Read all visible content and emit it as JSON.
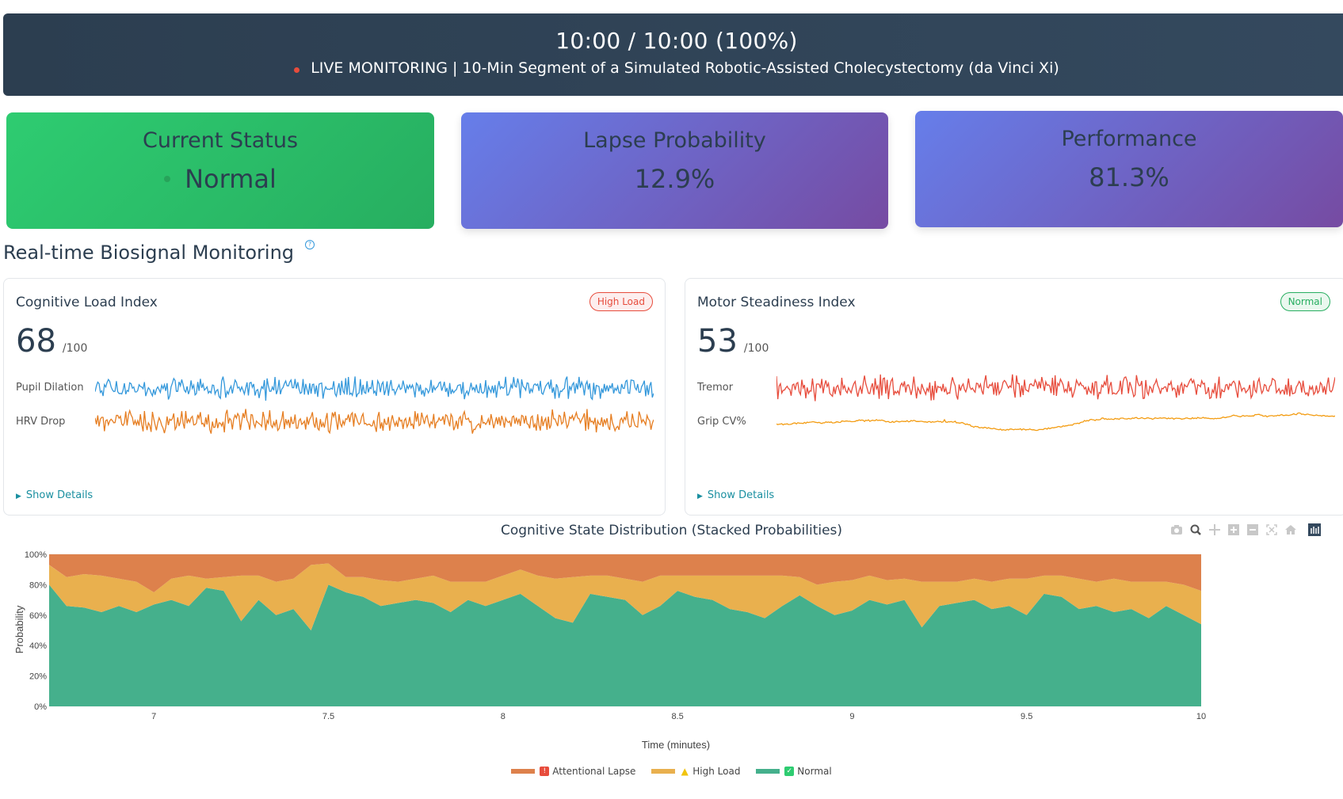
{
  "header": {
    "time": "10:00 / 10:00 (100%)",
    "subtitle": "LIVE MONITORING | 10-Min Segment of a Simulated Robotic-Assisted Cholecystectomy (da Vinci Xi)",
    "live_color": "#e74c3c"
  },
  "cards": {
    "status": {
      "title": "Current Status",
      "value": "Normal"
    },
    "lapse": {
      "title": "Lapse Probability",
      "value": "12.9%"
    },
    "performance": {
      "title": "Performance",
      "value": "81.3%"
    }
  },
  "section": {
    "title": "Real-time Biosignal Monitoring",
    "help_icon": "?"
  },
  "panels": {
    "cognitive": {
      "title": "Cognitive Load Index",
      "badge": "High Load",
      "value": "68",
      "max": "/100",
      "signals": [
        {
          "label": "Pupil Dilation",
          "color": "#3498db"
        },
        {
          "label": "HRV Drop",
          "color": "#e67e22"
        }
      ],
      "details": "Show Details"
    },
    "motor": {
      "title": "Motor Steadiness Index",
      "badge": "Normal",
      "value": "53",
      "max": "/100",
      "signals": [
        {
          "label": "Tremor",
          "color": "#e74c3c"
        },
        {
          "label": "Grip CV%",
          "color": "#f39c12"
        }
      ],
      "details": "Show Details"
    }
  },
  "modebar": {
    "icons": [
      "camera-icon",
      "zoom-icon",
      "pan-icon",
      "zoom-in-icon",
      "zoom-out-icon",
      "autoscale-icon",
      "reset-axes-icon",
      "plotly-logo-icon"
    ]
  },
  "chart_data": {
    "type": "area",
    "stacked": true,
    "title": "Cognitive State Distribution (Stacked Probabilities)",
    "xlabel": "Time (minutes)",
    "ylabel": "Probability",
    "xlim": [
      6.7,
      10
    ],
    "ylim": [
      0,
      1
    ],
    "xticks": [
      7,
      7.5,
      8,
      8.5,
      9,
      9.5,
      10
    ],
    "xtick_labels": [
      "7",
      "7.5",
      "8",
      "8.5",
      "9",
      "9.5",
      "10"
    ],
    "yticks": [
      0,
      0.2,
      0.4,
      0.6,
      0.8,
      1.0
    ],
    "ytick_labels": [
      "0%",
      "20%",
      "40%",
      "60%",
      "80%",
      "100%"
    ],
    "legend_position": "bottom",
    "x": [
      6.7,
      6.75,
      6.8,
      6.85,
      6.9,
      6.95,
      7.0,
      7.05,
      7.1,
      7.15,
      7.2,
      7.25,
      7.3,
      7.35,
      7.4,
      7.45,
      7.5,
      7.55,
      7.6,
      7.65,
      7.7,
      7.75,
      7.8,
      7.85,
      7.9,
      7.95,
      8.0,
      8.05,
      8.1,
      8.15,
      8.2,
      8.25,
      8.3,
      8.35,
      8.4,
      8.45,
      8.5,
      8.55,
      8.6,
      8.65,
      8.7,
      8.75,
      8.8,
      8.85,
      8.9,
      8.95,
      9.0,
      9.05,
      9.1,
      9.15,
      9.2,
      9.25,
      9.3,
      9.35,
      9.4,
      9.45,
      9.5,
      9.55,
      9.6,
      9.65,
      9.7,
      9.75,
      9.8,
      9.85,
      9.9,
      9.95,
      10.0
    ],
    "series": [
      {
        "name": "Normal",
        "color": "#45b08c",
        "values": [
          0.8,
          0.66,
          0.65,
          0.62,
          0.66,
          0.62,
          0.67,
          0.7,
          0.66,
          0.78,
          0.76,
          0.56,
          0.7,
          0.6,
          0.64,
          0.5,
          0.8,
          0.75,
          0.72,
          0.66,
          0.68,
          0.7,
          0.68,
          0.62,
          0.7,
          0.66,
          0.7,
          0.74,
          0.66,
          0.58,
          0.55,
          0.74,
          0.72,
          0.7,
          0.6,
          0.66,
          0.76,
          0.72,
          0.7,
          0.64,
          0.62,
          0.58,
          0.66,
          0.73,
          0.66,
          0.6,
          0.63,
          0.7,
          0.67,
          0.7,
          0.52,
          0.66,
          0.68,
          0.7,
          0.64,
          0.66,
          0.6,
          0.74,
          0.72,
          0.64,
          0.66,
          0.62,
          0.64,
          0.58,
          0.66,
          0.6,
          0.54
        ]
      },
      {
        "name": "High Load",
        "color": "#e9b04e",
        "values": [
          0.13,
          0.19,
          0.22,
          0.24,
          0.18,
          0.2,
          0.08,
          0.14,
          0.2,
          0.06,
          0.09,
          0.3,
          0.16,
          0.22,
          0.2,
          0.43,
          0.14,
          0.1,
          0.13,
          0.17,
          0.14,
          0.14,
          0.18,
          0.2,
          0.12,
          0.16,
          0.16,
          0.16,
          0.2,
          0.26,
          0.3,
          0.12,
          0.14,
          0.14,
          0.22,
          0.2,
          0.1,
          0.14,
          0.16,
          0.22,
          0.24,
          0.28,
          0.2,
          0.12,
          0.14,
          0.22,
          0.2,
          0.16,
          0.16,
          0.14,
          0.3,
          0.16,
          0.14,
          0.14,
          0.18,
          0.18,
          0.24,
          0.12,
          0.14,
          0.2,
          0.16,
          0.22,
          0.18,
          0.24,
          0.16,
          0.2,
          0.22
        ]
      },
      {
        "name": "Attentional Lapse",
        "color": "#dd814c",
        "values": [
          0.07,
          0.15,
          0.13,
          0.14,
          0.16,
          0.18,
          0.25,
          0.16,
          0.14,
          0.16,
          0.15,
          0.14,
          0.14,
          0.18,
          0.16,
          0.07,
          0.06,
          0.15,
          0.15,
          0.17,
          0.18,
          0.16,
          0.14,
          0.18,
          0.18,
          0.18,
          0.14,
          0.1,
          0.14,
          0.16,
          0.15,
          0.14,
          0.14,
          0.16,
          0.18,
          0.14,
          0.14,
          0.14,
          0.14,
          0.14,
          0.14,
          0.14,
          0.14,
          0.15,
          0.2,
          0.18,
          0.17,
          0.14,
          0.17,
          0.16,
          0.18,
          0.18,
          0.18,
          0.16,
          0.18,
          0.16,
          0.16,
          0.14,
          0.14,
          0.16,
          0.18,
          0.16,
          0.18,
          0.18,
          0.18,
          0.2,
          0.24
        ]
      }
    ],
    "legend": [
      {
        "name": "Attentional Lapse",
        "icon": "siren-icon",
        "color": "#dd814c"
      },
      {
        "name": "High Load",
        "icon": "warning-icon",
        "color": "#e9b04e"
      },
      {
        "name": "Normal",
        "icon": "check-icon",
        "color": "#45b08c"
      }
    ]
  }
}
